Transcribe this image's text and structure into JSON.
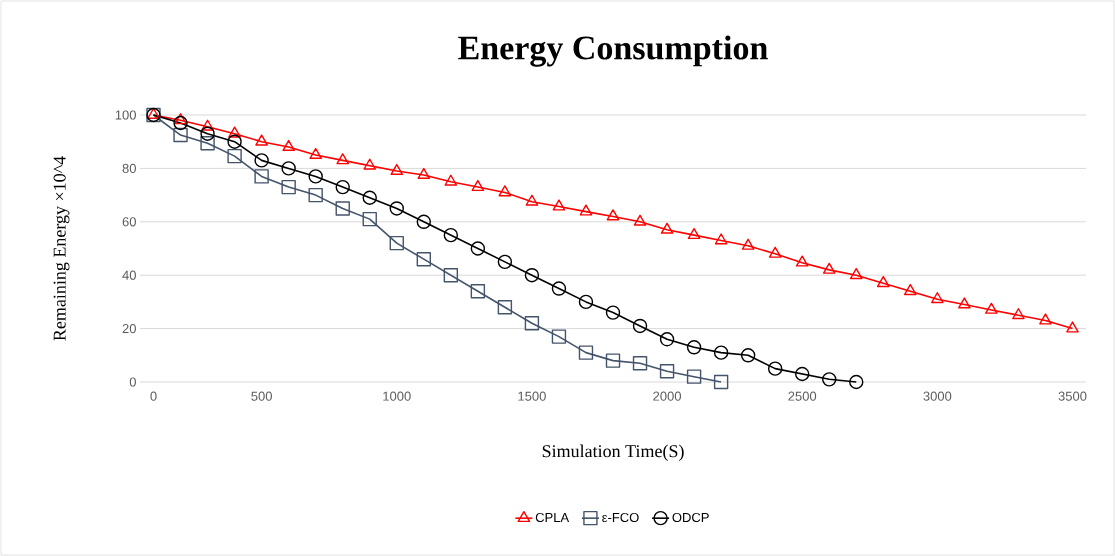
{
  "chart_data": {
    "type": "line",
    "title": "Energy Consumption",
    "xlabel": "Simulation Time(S)",
    "ylabel": "Remaining Energy ×10^4",
    "categories": [
      "0",
      null,
      null,
      null,
      "500",
      null,
      null,
      null,
      null,
      "1000",
      null,
      null,
      null,
      null,
      "1500",
      null,
      null,
      null,
      null,
      "2000",
      null,
      null,
      null,
      null,
      "2500",
      null,
      null,
      null,
      null,
      "3000",
      null,
      null,
      null,
      null,
      "3500"
    ],
    "series": [
      {
        "name": "CPLA",
        "color": "#ff0000",
        "marker": "triangle",
        "values": [
          100,
          98,
          95.6,
          93,
          90,
          88,
          85,
          83,
          81,
          79,
          77.5,
          75,
          73,
          71,
          67.5,
          65.7,
          63.8,
          62,
          60,
          57,
          55,
          53,
          51,
          48,
          44.7,
          42,
          40,
          37,
          34,
          31,
          29,
          27,
          25,
          23,
          20
        ]
      },
      {
        "name": "ε-FCO",
        "color": "#44546a",
        "marker": "square",
        "values": [
          100,
          92.5,
          89.4,
          84.6,
          77,
          73,
          70,
          65,
          61,
          52,
          46,
          40,
          34,
          28,
          22,
          17,
          11,
          8,
          7,
          4,
          2,
          0,
          null,
          null,
          null,
          null,
          null,
          null,
          null,
          null,
          null,
          null,
          null,
          null,
          null
        ]
      },
      {
        "name": "ODCP",
        "color": "#000000",
        "marker": "circle",
        "values": [
          100,
          97,
          93,
          90,
          83,
          80,
          77,
          73,
          69,
          65,
          60,
          55,
          50,
          45,
          40,
          35,
          30,
          26,
          21,
          16,
          13,
          11,
          10,
          5,
          3,
          1,
          0,
          null,
          null,
          null,
          null,
          null,
          null,
          null,
          null
        ]
      }
    ],
    "ylim": [
      0,
      100
    ],
    "yticks": [
      0,
      20,
      40,
      60,
      80,
      100
    ],
    "grid": "y",
    "legend": "bottom",
    "line_style": "solid"
  }
}
